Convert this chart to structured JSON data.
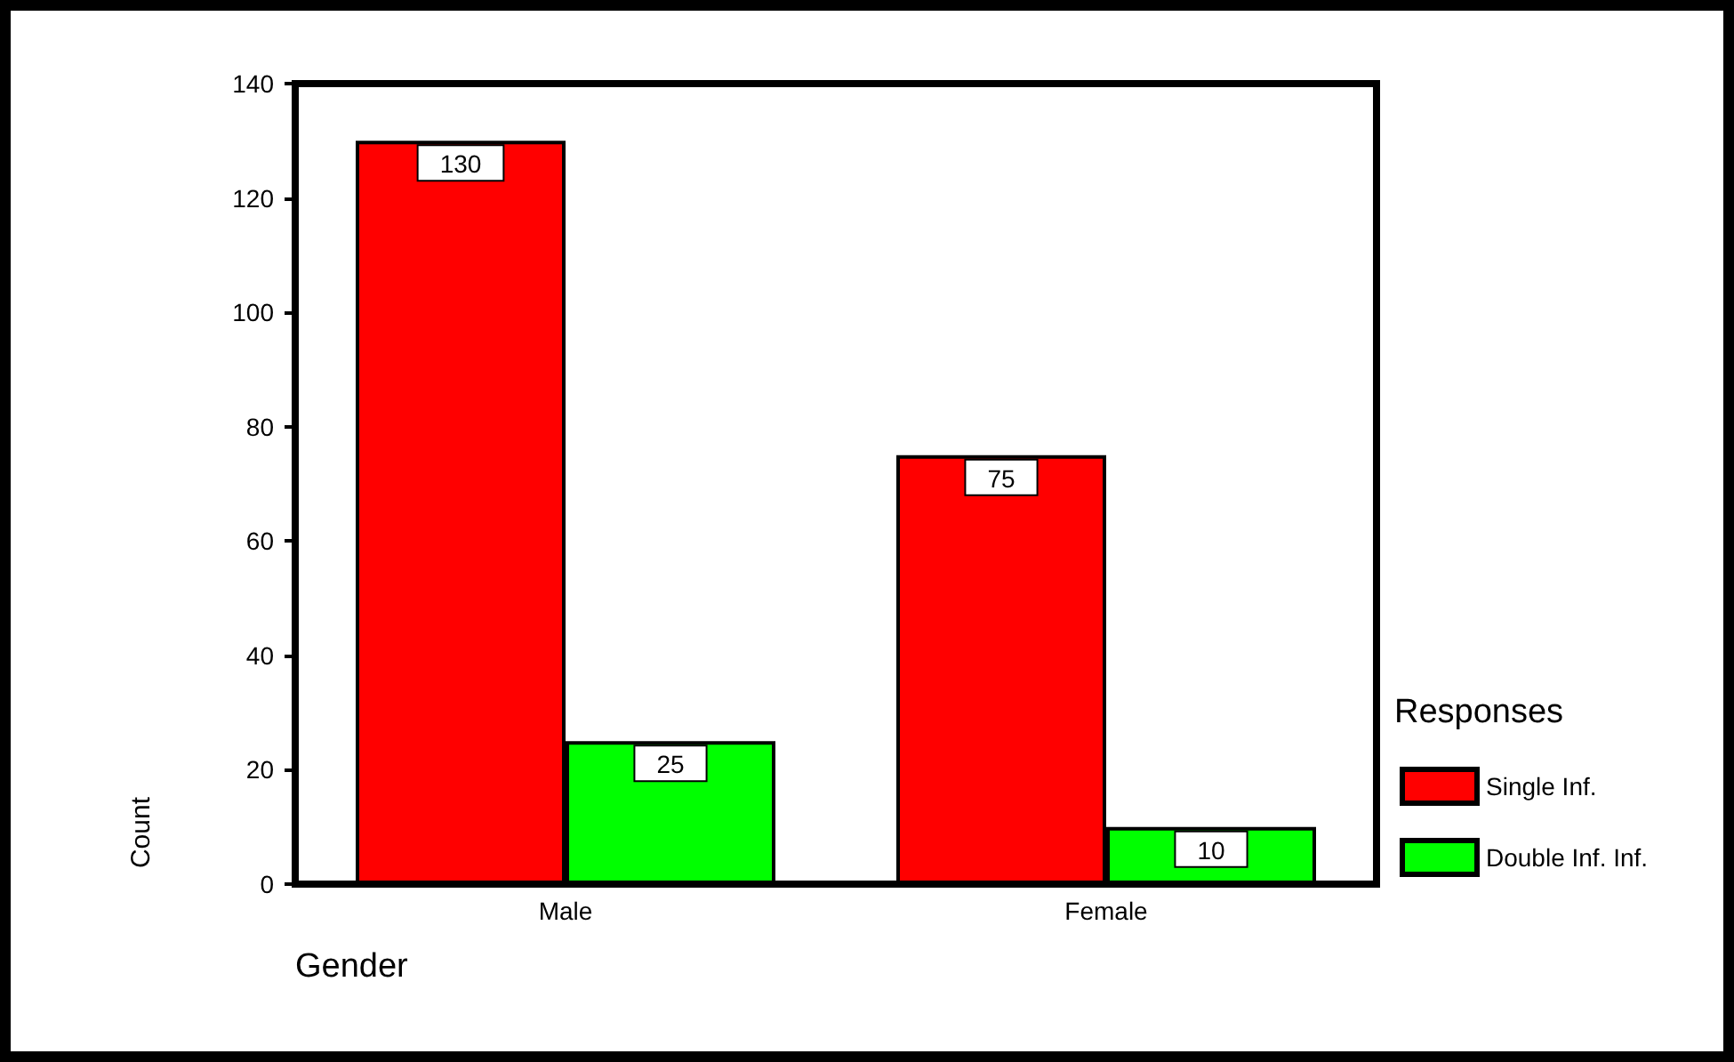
{
  "chart_data": {
    "type": "bar",
    "xlabel": "Gender",
    "ylabel": "Count",
    "legend_title": "Responses",
    "categories": [
      "Male",
      "Female"
    ],
    "series": [
      {
        "name": "Single Inf.",
        "color": "#ff0000",
        "values": [
          130,
          75
        ]
      },
      {
        "name": "Double Inf. Inf.",
        "color": "#00ff00",
        "values": [
          25,
          10
        ]
      }
    ],
    "ylim": [
      0,
      140
    ],
    "yticks": [
      0,
      20,
      40,
      60,
      80,
      100,
      120,
      140
    ],
    "grid": false,
    "legend": "right",
    "data_labels": true
  }
}
